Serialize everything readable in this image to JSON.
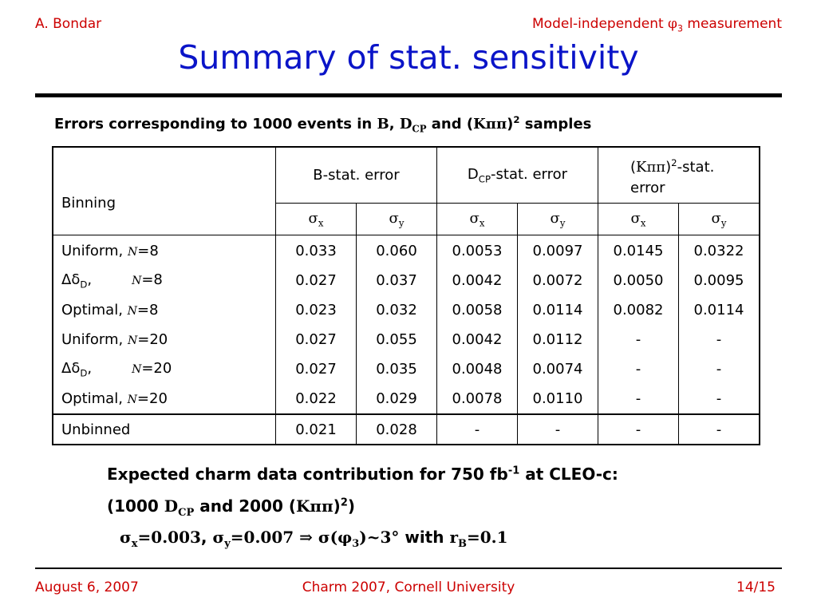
{
  "header": {
    "author": "A. Bondar",
    "topic_prefix": "Model-independent ",
    "phi": "φ",
    "phi_sub": "3",
    "topic_suffix": " measurement"
  },
  "title": "Summary of stat. sensitivity",
  "subtitle": {
    "prefix": "Errors corresponding to 1000 events in ",
    "b": "B",
    "comma": ", ",
    "d": "D",
    "d_sub": "CP",
    "and": " and (",
    "kpp": "Kππ",
    "close": ")",
    "sup": "2",
    "suffix": " samples"
  },
  "table": {
    "binning_header": "Binning",
    "group_headers": {
      "b": "B-stat. error",
      "dcp_d": "D",
      "dcp_sub": "CP",
      "dcp_rest": "-stat. error",
      "kpp_open": "(",
      "kpp": "Kππ",
      "kpp_close": ")",
      "kpp_sup": "2",
      "kpp_rest_line1": "-stat.",
      "kpp_rest_line2": "error"
    },
    "sigma": "σ",
    "sub_x": "x",
    "sub_y": "y",
    "n_symbol": "N",
    "rows": [
      {
        "label_pre": "Uniform, ",
        "label_delta": "",
        "label_post": "=8",
        "values": [
          "0.033",
          "0.060",
          "0.0053",
          "0.0097",
          "0.0145",
          "0.0322"
        ]
      },
      {
        "label_pre": "Δδ",
        "label_delta": "D",
        "label_post": "=8",
        "values": [
          "0.027",
          "0.037",
          "0.0042",
          "0.0072",
          "0.0050",
          "0.0095"
        ]
      },
      {
        "label_pre": "Optimal, ",
        "label_delta": "",
        "label_post": "=8",
        "values": [
          "0.023",
          "0.032",
          "0.0058",
          "0.0114",
          "0.0082",
          "0.0114"
        ]
      },
      {
        "label_pre": "Uniform, ",
        "label_delta": "",
        "label_post": "=20",
        "values": [
          "0.027",
          "0.055",
          "0.0042",
          "0.0112",
          "-",
          "-"
        ]
      },
      {
        "label_pre": "Δδ",
        "label_delta": "D",
        "label_post": "=20",
        "values": [
          "0.027",
          "0.035",
          "0.0048",
          "0.0074",
          "-",
          "-"
        ]
      },
      {
        "label_pre": "Optimal, ",
        "label_delta": "",
        "label_post": "=20",
        "values": [
          "0.022",
          "0.029",
          "0.0078",
          "0.0110",
          "-",
          "-"
        ]
      }
    ],
    "unbinned": {
      "label": "Unbinned",
      "values": [
        "0.021",
        "0.028",
        "-",
        "-",
        "-",
        "-"
      ]
    }
  },
  "expected": {
    "line1_pre": "Expected charm data contribution for 750 fb",
    "line1_sup": "-1",
    "line1_post": " at CLEO-c:",
    "line2_a": "(1000 ",
    "line2_d": "D",
    "line2_sub": "CP",
    "line2_b": " and 2000 (",
    "line2_kpp": "Kππ",
    "line2_c": ")",
    "line2_sup": "2",
    "line2_d2": ")",
    "line3_sx": "σ",
    "line3_x": "x",
    "line3_vx": "=0.003",
    "line3_comma": ", ",
    "line3_sy": "σ",
    "line3_y": "y",
    "line3_vy": "=0.007 ",
    "line3_arrow": "⇒",
    "line3_s": " σ(φ",
    "line3_3": "3",
    "line3_res": ")~3°",
    "line3_with": " with ",
    "line3_r": "r",
    "line3_B": "B",
    "line3_rv": "=0.1"
  },
  "footer": {
    "date": "August 6, 2007",
    "venue": "Charm 2007, Cornell University",
    "page": "14/15"
  }
}
